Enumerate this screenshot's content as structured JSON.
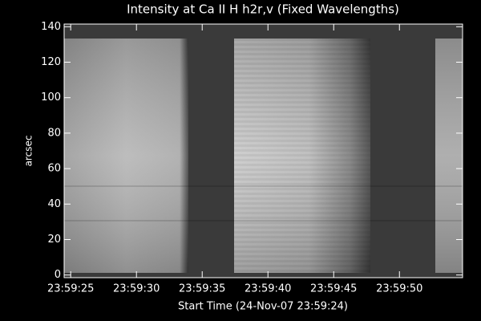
{
  "chart_data": {
    "type": "image",
    "title": "Intensity at Ca II H h2r,v (Fixed Wavelengths)",
    "xlabel": "Start Time (24-Nov-07 23:59:24)",
    "ylabel": "arcsec",
    "xlim": [
      0.5,
      30.8
    ],
    "xticks": [
      {
        "value": 1,
        "label": "23:59:25"
      },
      {
        "value": 6,
        "label": "23:59:30"
      },
      {
        "value": 11,
        "label": "23:59:35"
      },
      {
        "value": 16,
        "label": "23:59:40"
      },
      {
        "value": 21,
        "label": "23:59:45"
      },
      {
        "value": 26,
        "label": "23:59:50"
      }
    ],
    "ylim": [
      -1.5,
      141.5
    ],
    "yticks": [
      0,
      20,
      40,
      60,
      80,
      100,
      120,
      140
    ]
  }
}
